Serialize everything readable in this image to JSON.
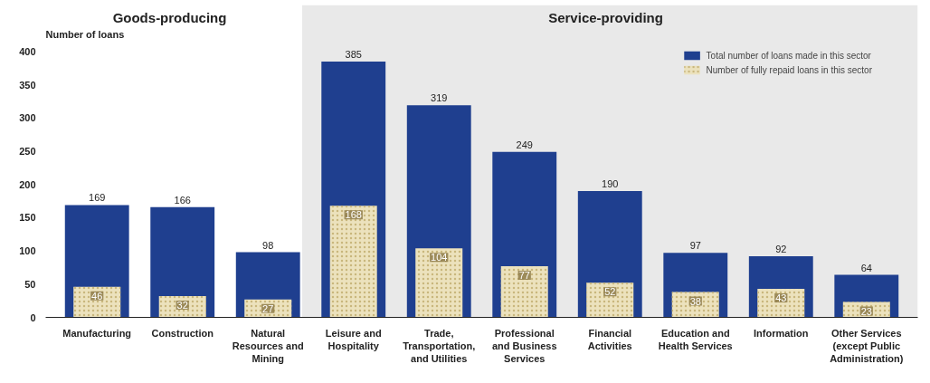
{
  "chart_data": {
    "type": "bar",
    "ylabel": "Number of loans",
    "categories": [
      "Manufacturing",
      "Construction",
      "Natural Resources and Mining",
      "Leisure and Hospitality",
      "Trade, Transportation, and Utilities",
      "Professional and Business Services",
      "Financial Activities",
      "Education and Health Services",
      "Information",
      "Other Services (except Public Administration)"
    ],
    "series": [
      {
        "name": "Total number of loans made in this sector",
        "color": "#1f3f8f",
        "values": [
          169,
          166,
          98,
          385,
          319,
          249,
          190,
          97,
          92,
          64
        ]
      },
      {
        "name": "Number of fully repaid loans in this sector",
        "color": "#ece2bd",
        "values": [
          46,
          32,
          27,
          168,
          104,
          77,
          52,
          38,
          43,
          23
        ]
      }
    ],
    "data_labels": true,
    "ylim": [
      0,
      470
    ],
    "yticks": [
      0,
      50,
      100,
      150,
      200,
      250,
      300,
      350,
      400
    ],
    "grid": false,
    "legend": "top right",
    "annotations": [
      "Goods-producing"
    ],
    "bands": [
      {
        "axis": "x",
        "from": "Leisure and Hospitality",
        "to": "Other Services (except Public Administration)",
        "label": "Service-providing",
        "color": "#e9e9e9"
      }
    ]
  }
}
